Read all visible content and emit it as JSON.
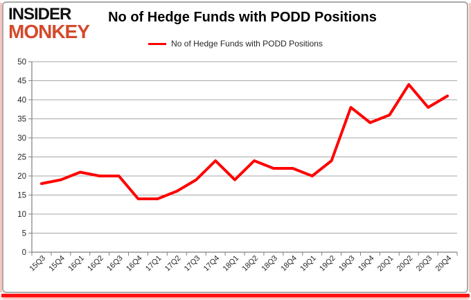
{
  "logo": {
    "line1": "INSIDER",
    "line2": "MONKEY"
  },
  "title": "No of Hedge Funds with PODD Positions",
  "legend": {
    "label": "No of Hedge Funds with PODD Positions"
  },
  "colors": {
    "series": "#ff0000",
    "gridline": "#a6a6a6",
    "axis": "#808080",
    "tick_label": "#262626",
    "title_text": "#000000",
    "logo_black": "#111111",
    "logo_red": "#d4492b",
    "frame_gray": "#a9a9a9",
    "frame_pink": "#f6c5bf",
    "frame_red_bar": "#fe1010"
  },
  "chart_data": {
    "type": "line",
    "title": "No of Hedge Funds with PODD Positions",
    "xlabel": "",
    "ylabel": "",
    "categories": [
      "15Q3",
      "15Q4",
      "16Q1",
      "16Q2",
      "16Q3",
      "16Q4",
      "17Q1",
      "17Q2",
      "17Q3",
      "17Q4",
      "18Q1",
      "18Q2",
      "18Q3",
      "18Q4",
      "19Q1",
      "19Q2",
      "19Q3",
      "19Q4",
      "20Q1",
      "20Q2",
      "20Q3",
      "20Q4"
    ],
    "series": [
      {
        "name": "No of Hedge Funds with PODD Positions",
        "color": "#ff0000",
        "values": [
          18,
          19,
          21,
          20,
          20,
          14,
          14,
          16,
          19,
          24,
          19,
          24,
          22,
          22,
          20,
          24,
          38,
          34,
          36,
          44,
          38,
          41
        ]
      }
    ],
    "ylim": [
      0,
      50
    ],
    "ytick_step": 5,
    "grid": true,
    "legend_position": "top"
  }
}
